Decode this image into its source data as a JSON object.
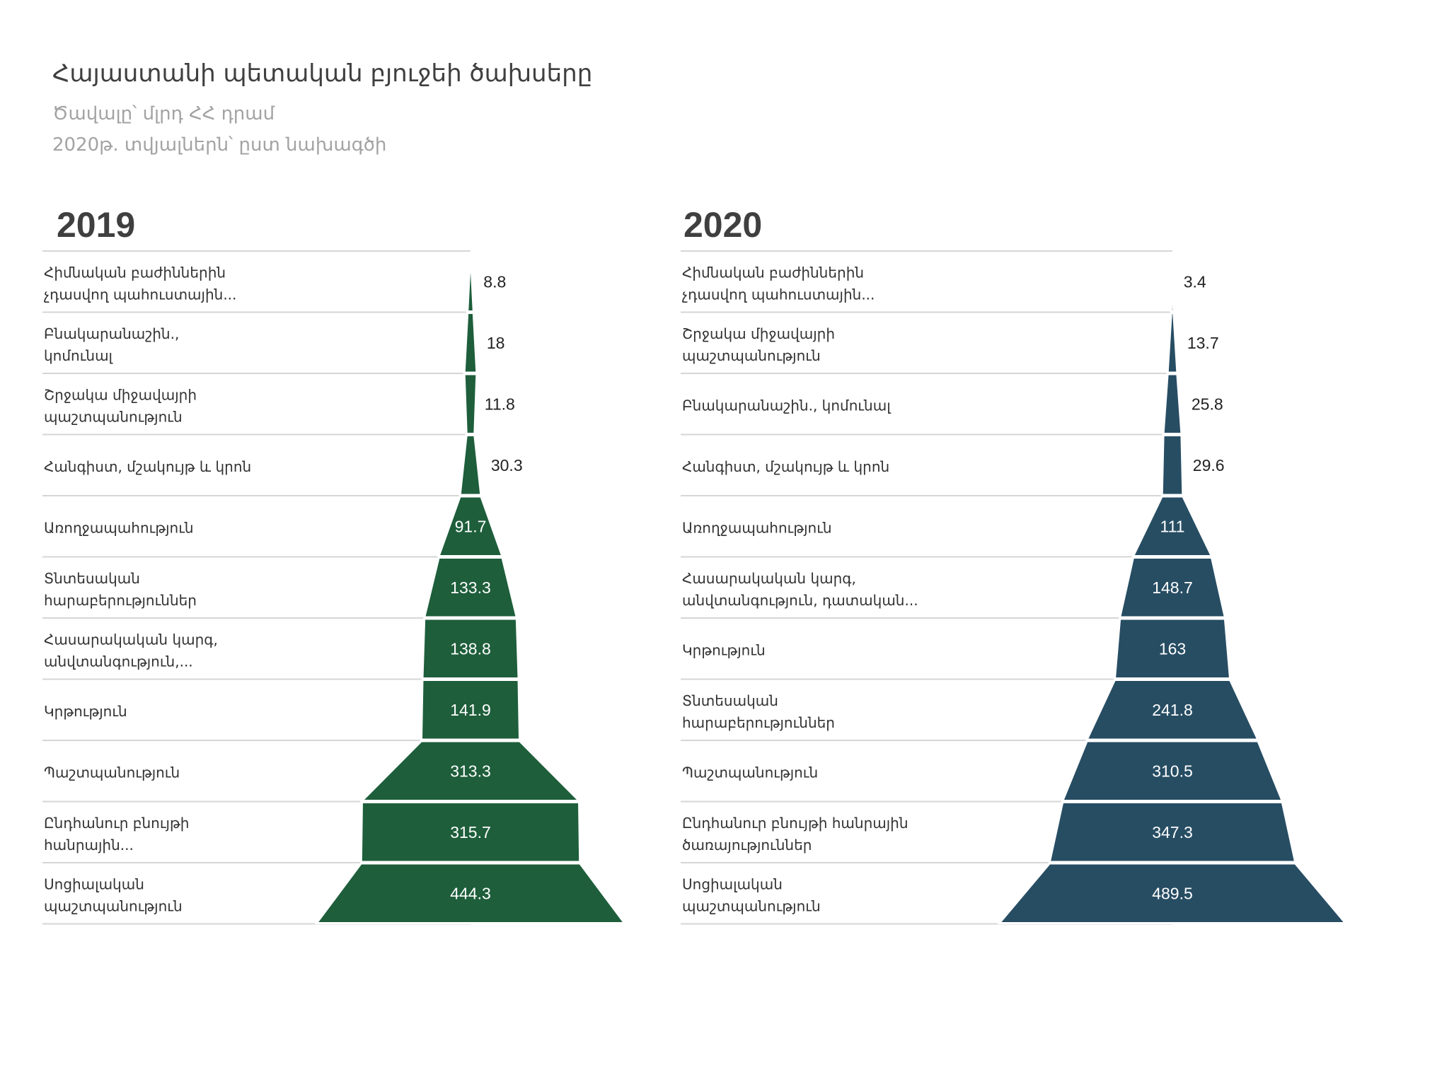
{
  "header": {
    "title": "Հայաստանի պետական բյուջեի ծախսերը",
    "subtitle": "Ծավալը՝ մլրդ ՀՀ դրամ",
    "note": "2020թ. տվյալներն՝ ըստ նախագծի"
  },
  "chart_data": [
    {
      "type": "funnel",
      "title": "2019",
      "color": "#1e5e3b",
      "categories": [
        [
          "Հիմնական բաժիններին",
          "չդասվող պահուստային..."
        ],
        [
          "Բնակարանաշին.,",
          "կոմունալ"
        ],
        [
          "Շրջակա միջավայրի",
          "պաշտպանություն"
        ],
        [
          "Հանգիստ, մշակույթ և կրոն"
        ],
        [
          "Առողջապահություն"
        ],
        [
          "Տնտեսական",
          "հարաբերություններ"
        ],
        [
          "Հասարակական կարգ,",
          "անվտանգություն,..."
        ],
        [
          "Կրթություն"
        ],
        [
          "Պաշտպանություն"
        ],
        [
          "Ընդհանուր բնույթի",
          "հանրային..."
        ],
        [
          "Սոցիալական",
          "պաշտպանություն"
        ]
      ],
      "values": [
        8.8,
        18,
        11.8,
        30.3,
        91.7,
        133.3,
        138.8,
        141.9,
        313.3,
        315.7,
        444.3
      ],
      "labels": [
        "8.8",
        "18",
        "11.8",
        "30.3",
        "91.7",
        "133.3",
        "138.8",
        "141.9",
        "313.3",
        "315.7",
        "444.3"
      ]
    },
    {
      "type": "funnel",
      "title": "2020",
      "color": "#274d63",
      "categories": [
        [
          "Հիմնական բաժիններին",
          "չդասվող պահուստային..."
        ],
        [
          "Շրջակա միջավայրի",
          "պաշտպանություն"
        ],
        [
          "Բնակարանաշին., կոմունալ"
        ],
        [
          "Հանգիստ, մշակույթ և կրոն"
        ],
        [
          "Առողջապահություն"
        ],
        [
          "Հասարակական կարգ,",
          "անվտանգություն, դատական..."
        ],
        [
          "Կրթություն"
        ],
        [
          "Տնտեսական",
          "հարաբերություններ"
        ],
        [
          "Պաշտպանություն"
        ],
        [
          "Ընդհանուր բնույթի հանրային",
          "ծառայություններ"
        ],
        [
          "Սոցիալական",
          "պաշտպանություն"
        ]
      ],
      "values": [
        3.4,
        13.7,
        25.8,
        29.6,
        111,
        148.7,
        163,
        241.8,
        310.5,
        347.3,
        489.5
      ],
      "labels": [
        "3.4",
        "13.7",
        "25.8",
        "29.6",
        "111",
        "148.7",
        "163",
        "241.8",
        "310.5",
        "347.3",
        "489.5"
      ]
    }
  ]
}
